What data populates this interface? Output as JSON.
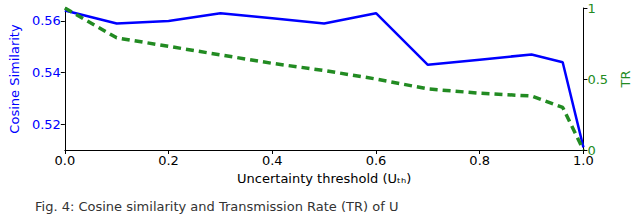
{
  "chart_data": {
    "type": "line",
    "caption": "Fig. 4: Cosine similarity and Transmission Rate (TR) of U",
    "x_label": "Uncertainty threshold (Uₜₕ)",
    "y_label": "Cosine Similarity",
    "y2_label": "TR",
    "x": [
      0.0,
      0.1,
      0.2,
      0.3,
      0.4,
      0.5,
      0.6,
      0.7,
      0.8,
      0.9,
      0.96,
      1.0
    ],
    "series": [
      {
        "name": "Cosine Similarity",
        "color": "#0000ff",
        "line_style": "solid",
        "values": [
          0.564,
          0.559,
          0.56,
          0.563,
          0.561,
          0.559,
          0.563,
          0.543,
          0.545,
          0.547,
          0.544,
          0.511
        ]
      },
      {
        "name": "TR",
        "color": "#228b22",
        "line_style": "dashed",
        "axis": "y2",
        "values": [
          1.0,
          0.79,
          0.73,
          0.67,
          0.61,
          0.56,
          0.5,
          0.43,
          0.4,
          0.38,
          0.3,
          0.0
        ]
      }
    ],
    "xlim": [
      0,
      1
    ],
    "xticks": [
      {
        "value": 0,
        "label": "0.0"
      },
      {
        "value": 0.2,
        "label": "0.2"
      },
      {
        "value": 0.4,
        "label": "0.4"
      },
      {
        "value": 0.6,
        "label": "0.6"
      },
      {
        "value": 0.8,
        "label": "0.8"
      },
      {
        "value": 1,
        "label": "1.0"
      }
    ],
    "ylim": [
      0.51,
      0.565
    ],
    "yticks": [
      0.52,
      0.54,
      0.56
    ],
    "y2lim": [
      0,
      1
    ],
    "y2ticks": [
      0,
      0.5,
      1
    ],
    "grid": false
  }
}
